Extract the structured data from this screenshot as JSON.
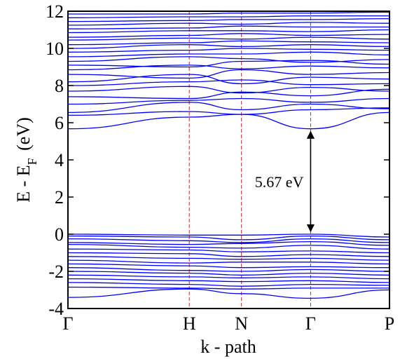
{
  "chart_data": {
    "type": "line",
    "title": "",
    "xlabel": "k - path",
    "ylabel": {
      "main": "E - E",
      "subscript": "F",
      "suffix": " (eV)"
    },
    "ylim": [
      -4,
      12
    ],
    "yticks": [
      "-4",
      "-2",
      "0",
      "2",
      "4",
      "6",
      "8",
      "10",
      "12"
    ],
    "k_points": [
      {
        "label": "Γ",
        "pos": 0.0
      },
      {
        "label": "H",
        "pos": 1.0
      },
      {
        "label": "N",
        "pos": 1.43
      },
      {
        "label": "Γ",
        "pos": 2.0
      },
      {
        "label": "P",
        "pos": 2.65
      }
    ],
    "band_color": "#0000ff",
    "divider_color": "#b03030",
    "band_gap": {
      "value_label": "5.67 eV",
      "vbm": 0.0,
      "cbm": 5.67,
      "k_pos": 2.0
    },
    "conduction_bands": [
      {
        "y": [
          5.67,
          6.3,
          6.45,
          5.67,
          6.55
        ]
      },
      {
        "y": [
          6.4,
          6.6,
          6.45,
          6.7,
          6.8
        ]
      },
      {
        "y": [
          6.55,
          7.1,
          6.7,
          7.0,
          6.75
        ]
      },
      {
        "y": [
          7.0,
          7.2,
          7.3,
          7.1,
          7.3
        ]
      },
      {
        "y": [
          7.4,
          7.3,
          7.65,
          7.45,
          7.8
        ]
      },
      {
        "y": [
          7.7,
          7.95,
          7.6,
          7.9,
          7.7
        ]
      },
      {
        "y": [
          8.0,
          8.2,
          8.3,
          8.05,
          8.1
        ]
      },
      {
        "y": [
          8.2,
          8.6,
          8.1,
          8.45,
          8.35
        ]
      },
      {
        "y": [
          8.6,
          8.4,
          8.85,
          8.6,
          8.7
        ]
      },
      {
        "y": [
          8.85,
          9.1,
          8.9,
          9.05,
          8.95
        ]
      },
      {
        "y": [
          9.1,
          9.0,
          9.3,
          9.35,
          9.15
        ]
      },
      {
        "y": [
          9.3,
          9.55,
          9.45,
          9.25,
          9.4
        ]
      },
      {
        "y": [
          9.55,
          9.7,
          9.7,
          9.8,
          9.65
        ]
      },
      {
        "y": [
          9.8,
          9.9,
          10.0,
          9.95,
          9.9
        ]
      },
      {
        "y": [
          10.0,
          10.2,
          10.1,
          10.2,
          10.1
        ]
      },
      {
        "y": [
          10.2,
          10.3,
          10.4,
          10.35,
          10.3
        ]
      },
      {
        "y": [
          10.45,
          10.55,
          10.5,
          10.6,
          10.5
        ]
      },
      {
        "y": [
          10.6,
          10.7,
          10.8,
          10.7,
          10.75
        ]
      },
      {
        "y": [
          10.85,
          10.95,
          10.95,
          10.9,
          11.0
        ]
      },
      {
        "y": [
          11.05,
          11.1,
          11.2,
          11.15,
          11.15
        ]
      },
      {
        "y": [
          11.25,
          11.35,
          11.3,
          11.4,
          11.35
        ]
      },
      {
        "y": [
          11.45,
          11.5,
          11.55,
          11.55,
          11.6
        ]
      },
      {
        "y": [
          11.65,
          11.7,
          11.7,
          11.75,
          11.75
        ]
      },
      {
        "y": [
          11.85,
          11.85,
          11.9,
          11.9,
          11.95
        ]
      }
    ],
    "valence_bands": [
      {
        "y": [
          0.0,
          -0.05,
          -0.05,
          0.0,
          -0.15
        ]
      },
      {
        "y": [
          -0.1,
          -0.15,
          -0.3,
          -0.1,
          -0.3
        ]
      },
      {
        "y": [
          -0.25,
          -0.35,
          -0.45,
          -0.25,
          -0.45
        ]
      },
      {
        "y": [
          -0.45,
          -0.55,
          -0.5,
          -0.4,
          -0.6
        ]
      },
      {
        "y": [
          -0.55,
          -0.7,
          -0.75,
          -0.6,
          -0.8
        ]
      },
      {
        "y": [
          -0.8,
          -0.85,
          -0.95,
          -0.9,
          -1.0
        ]
      },
      {
        "y": [
          -1.0,
          -1.05,
          -1.2,
          -1.1,
          -1.2
        ]
      },
      {
        "y": [
          -1.2,
          -1.3,
          -1.35,
          -1.3,
          -1.4
        ]
      },
      {
        "y": [
          -1.4,
          -1.55,
          -1.5,
          -1.5,
          -1.6
        ]
      },
      {
        "y": [
          -1.6,
          -1.7,
          -1.8,
          -1.75,
          -1.8
        ]
      },
      {
        "y": [
          -1.8,
          -1.95,
          -2.0,
          -1.9,
          -2.0
        ]
      },
      {
        "y": [
          -2.0,
          -2.1,
          -2.2,
          -2.1,
          -2.2
        ]
      },
      {
        "y": [
          -2.2,
          -2.3,
          -2.35,
          -2.3,
          -2.4
        ]
      },
      {
        "y": [
          -2.4,
          -2.5,
          -2.55,
          -2.5,
          -2.6
        ]
      },
      {
        "y": [
          -2.6,
          -2.7,
          -2.8,
          -2.7,
          -2.75
        ]
      },
      {
        "y": [
          -2.85,
          -2.9,
          -2.95,
          -2.9,
          -2.9
        ]
      },
      {
        "y": [
          -3.4,
          -2.95,
          -3.2,
          -3.45,
          -3.0
        ]
      }
    ]
  }
}
